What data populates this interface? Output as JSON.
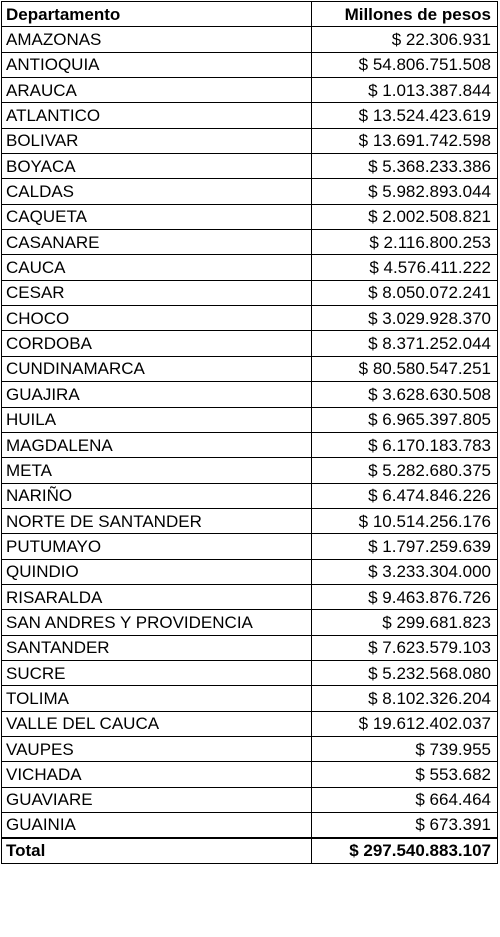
{
  "table": {
    "headers": {
      "department": "Departamento",
      "amount": "Millones de pesos"
    },
    "rows": [
      {
        "department": "AMAZONAS",
        "amount": "$ 22.306.931"
      },
      {
        "department": "ANTIOQUIA",
        "amount": "$ 54.806.751.508"
      },
      {
        "department": "ARAUCA",
        "amount": "$ 1.013.387.844"
      },
      {
        "department": "ATLANTICO",
        "amount": "$ 13.524.423.619"
      },
      {
        "department": "BOLIVAR",
        "amount": "$ 13.691.742.598"
      },
      {
        "department": "BOYACA",
        "amount": "$ 5.368.233.386"
      },
      {
        "department": "CALDAS",
        "amount": "$ 5.982.893.044"
      },
      {
        "department": "CAQUETA",
        "amount": "$ 2.002.508.821"
      },
      {
        "department": "CASANARE",
        "amount": "$ 2.116.800.253"
      },
      {
        "department": "CAUCA",
        "amount": "$ 4.576.411.222"
      },
      {
        "department": "CESAR",
        "amount": "$ 8.050.072.241"
      },
      {
        "department": "CHOCO",
        "amount": "$ 3.029.928.370"
      },
      {
        "department": "CORDOBA",
        "amount": "$ 8.371.252.044"
      },
      {
        "department": "CUNDINAMARCA",
        "amount": "$ 80.580.547.251"
      },
      {
        "department": "GUAJIRA",
        "amount": "$ 3.628.630.508"
      },
      {
        "department": "HUILA",
        "amount": "$ 6.965.397.805"
      },
      {
        "department": "MAGDALENA",
        "amount": "$ 6.170.183.783"
      },
      {
        "department": "META",
        "amount": "$ 5.282.680.375"
      },
      {
        "department": "NARIÑO",
        "amount": "$ 6.474.846.226"
      },
      {
        "department": "NORTE DE SANTANDER",
        "amount": "$ 10.514.256.176"
      },
      {
        "department": "PUTUMAYO",
        "amount": "$ 1.797.259.639"
      },
      {
        "department": "QUINDIO",
        "amount": "$ 3.233.304.000"
      },
      {
        "department": "RISARALDA",
        "amount": "$ 9.463.876.726"
      },
      {
        "department": "SAN ANDRES Y PROVIDENCIA",
        "amount": "$ 299.681.823"
      },
      {
        "department": "SANTANDER",
        "amount": "$ 7.623.579.103"
      },
      {
        "department": "SUCRE",
        "amount": "$ 5.232.568.080"
      },
      {
        "department": "TOLIMA",
        "amount": "$ 8.102.326.204"
      },
      {
        "department": "VALLE DEL CAUCA",
        "amount": "$ 19.612.402.037"
      },
      {
        "department": "VAUPES",
        "amount": "$ 739.955"
      },
      {
        "department": "VICHADA",
        "amount": "$ 553.682"
      },
      {
        "department": "GUAVIARE",
        "amount": "$ 664.464"
      },
      {
        "department": "GUAINIA",
        "amount": "$ 673.391"
      }
    ],
    "total": {
      "label": "Total",
      "amount": "$ 297.540.883.107"
    }
  }
}
